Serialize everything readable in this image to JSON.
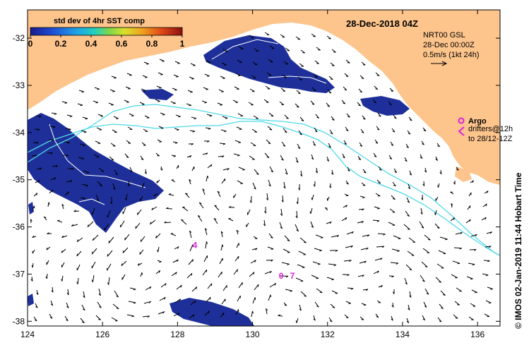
{
  "map": {
    "title": "28-Dec-2018 04Z",
    "x_axis": {
      "ticks": [
        "124",
        "126",
        "128",
        "130",
        "132",
        "134",
        "136"
      ],
      "range": [
        124,
        136.6
      ]
    },
    "y_axis": {
      "ticks": [
        "-32",
        "-33",
        "-34",
        "-35",
        "-36",
        "-37",
        "-38"
      ],
      "range": [
        -38.1,
        -31.4
      ]
    },
    "land_color": "#fdc48c",
    "ocean_color": "#ffffff",
    "sst_color": "#1e2f99",
    "track_color": "#4fd8e8",
    "argo_color": "#e020e0"
  },
  "colorbar": {
    "title": "std dev of 4hr SST comp",
    "ticks": [
      "0",
      "0.2",
      "0.4",
      "0.6",
      "0.8",
      "1"
    ]
  },
  "velocity_legend": {
    "line1": "NRT00 GSL",
    "line2": "28-Dec 00:00Z",
    "line3": "0.5m/s (1kt 24h)"
  },
  "argo_legend": {
    "title": "Argo",
    "line1": "drifters@12h",
    "line2": "to 28/12-12Z"
  },
  "drifters": [
    {
      "label": "4",
      "lon": 128.4,
      "lat": -36.45
    },
    {
      "label": "0",
      "lon": 130.7,
      "lat": -37.1
    },
    {
      "label": "7",
      "lon": 131.0,
      "lat": -37.1
    }
  ],
  "credit": "© IMOS 02-Jan-2019 11:44 Hobart Time"
}
